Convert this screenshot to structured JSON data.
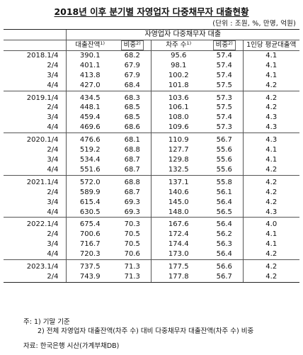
{
  "title": "2018년 이후 분기별 자영업자 다중채무자 대출현황",
  "unit": "(단위 : 조원, %, 만명, 억원)",
  "header": {
    "group_label": "자영업자 다중채무자 대출",
    "col_loan_balance": "대출잔액",
    "col_loan_balance_sup": "1)",
    "col_share1": "비중",
    "col_share1_sup": "2)",
    "col_borrowers": "차주 수",
    "col_borrowers_sup": "1)",
    "col_share2": "비중",
    "col_share2_sup": "2)",
    "col_avg": "1인당 평균대출액"
  },
  "rows": [
    {
      "q": "2018.1/4",
      "loan": "390.1",
      "s1": "68.2",
      "borrowers": "95.6",
      "s2": "57.4",
      "avg": "4.1"
    },
    {
      "q": "2/4",
      "loan": "401.1",
      "s1": "67.9",
      "borrowers": "98.1",
      "s2": "57.4",
      "avg": "4.1"
    },
    {
      "q": "3/4",
      "loan": "413.8",
      "s1": "67.9",
      "borrowers": "100.2",
      "s2": "57.4",
      "avg": "4.1"
    },
    {
      "q": "4/4",
      "loan": "427.0",
      "s1": "68.4",
      "borrowers": "101.8",
      "s2": "57.5",
      "avg": "4.2"
    },
    {
      "q": "2019.1/4",
      "loan": "434.5",
      "s1": "68.3",
      "borrowers": "103.6",
      "s2": "57.3",
      "avg": "4.2"
    },
    {
      "q": "2/4",
      "loan": "448.1",
      "s1": "68.5",
      "borrowers": "106.1",
      "s2": "57.5",
      "avg": "4.2"
    },
    {
      "q": "3/4",
      "loan": "459.4",
      "s1": "68.5",
      "borrowers": "108.0",
      "s2": "57.4",
      "avg": "4.3"
    },
    {
      "q": "4/4",
      "loan": "469.6",
      "s1": "68.6",
      "borrowers": "109.6",
      "s2": "57.3",
      "avg": "4.3"
    },
    {
      "q": "2020.1/4",
      "loan": "476.6",
      "s1": "68.1",
      "borrowers": "110.9",
      "s2": "56.7",
      "avg": "4.3"
    },
    {
      "q": "2/4",
      "loan": "519.2",
      "s1": "68.8",
      "borrowers": "127.7",
      "s2": "55.6",
      "avg": "4.1"
    },
    {
      "q": "3/4",
      "loan": "534.4",
      "s1": "68.7",
      "borrowers": "129.8",
      "s2": "55.6",
      "avg": "4.1"
    },
    {
      "q": "4/4",
      "loan": "551.6",
      "s1": "68.7",
      "borrowers": "132.5",
      "s2": "55.6",
      "avg": "4.2"
    },
    {
      "q": "2021.1/4",
      "loan": "572.0",
      "s1": "68.8",
      "borrowers": "137.1",
      "s2": "55.8",
      "avg": "4.2"
    },
    {
      "q": "2/4",
      "loan": "589.9",
      "s1": "68.7",
      "borrowers": "140.6",
      "s2": "56.1",
      "avg": "4.2"
    },
    {
      "q": "3/4",
      "loan": "615.4",
      "s1": "69.3",
      "borrowers": "145.0",
      "s2": "56.4",
      "avg": "4.2"
    },
    {
      "q": "4/4",
      "loan": "630.5",
      "s1": "69.3",
      "borrowers": "148.0",
      "s2": "56.5",
      "avg": "4.3"
    },
    {
      "q": "2022.1/4",
      "loan": "675.4",
      "s1": "70.3",
      "borrowers": "167.6",
      "s2": "56.4",
      "avg": "4.0"
    },
    {
      "q": "2/4",
      "loan": "700.6",
      "s1": "70.5",
      "borrowers": "172.4",
      "s2": "56.2",
      "avg": "4.1"
    },
    {
      "q": "3/4",
      "loan": "716.7",
      "s1": "70.5",
      "borrowers": "174.4",
      "s2": "56.3",
      "avg": "4.1"
    },
    {
      "q": "4/4",
      "loan": "720.3",
      "s1": "70.6",
      "borrowers": "173.0",
      "s2": "56.4",
      "avg": "4.2"
    },
    {
      "q": "2023.1/4",
      "loan": "737.5",
      "s1": "71.3",
      "borrowers": "177.5",
      "s2": "56.6",
      "avg": "4.2"
    },
    {
      "q": "2/4",
      "loan": "743.9",
      "s1": "71.3",
      "borrowers": "177.8",
      "s2": "56.7",
      "avg": "4.2"
    }
  ],
  "notes": {
    "note1": "주: 1) 기말 기준",
    "note2": "2) 전체 자영업자 대출잔액(차주 수) 대비 다중채무자 대출잔액(차주 수) 비중",
    "source": "자료: 한국은행 시산(가계부채DB)"
  }
}
